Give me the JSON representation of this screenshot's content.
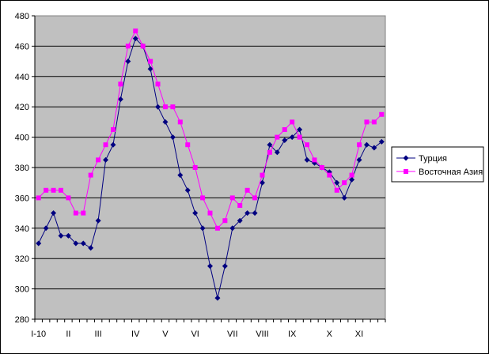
{
  "chart_data": {
    "type": "line",
    "title": "",
    "xlabel": "",
    "ylabel": "",
    "ylim": [
      280,
      480
    ],
    "ytick_step": 20,
    "grid": "horizontal",
    "legend_position": "right",
    "x_tick_labels": [
      {
        "label": "I-10",
        "index": 0
      },
      {
        "label": "II",
        "index": 4
      },
      {
        "label": "III",
        "index": 8
      },
      {
        "label": "IV",
        "index": 13
      },
      {
        "label": "V",
        "index": 17
      },
      {
        "label": "VI",
        "index": 21
      },
      {
        "label": "VII",
        "index": 26
      },
      {
        "label": "VIII",
        "index": 30
      },
      {
        "label": "IX",
        "index": 34
      },
      {
        "label": "X",
        "index": 39
      },
      {
        "label": "XI",
        "index": 43
      }
    ],
    "num_points": 47,
    "series": [
      {
        "name": "Турция",
        "color": "#000080",
        "marker": "diamond",
        "values": [
          330,
          340,
          350,
          335,
          335,
          330,
          330,
          327,
          345,
          385,
          395,
          425,
          450,
          465,
          460,
          445,
          420,
          410,
          400,
          375,
          365,
          350,
          340,
          315,
          294,
          315,
          340,
          345,
          350,
          350,
          370,
          395,
          390,
          398,
          400,
          405,
          385,
          383,
          380,
          377,
          370,
          360,
          372,
          385,
          395,
          393,
          397
        ]
      },
      {
        "name": "Восточная Азия",
        "color": "#FF00FF",
        "marker": "square",
        "values": [
          360,
          365,
          365,
          365,
          360,
          350,
          350,
          375,
          385,
          395,
          405,
          435,
          460,
          470,
          460,
          450,
          435,
          420,
          420,
          410,
          395,
          380,
          360,
          350,
          340,
          345,
          360,
          355,
          365,
          360,
          375,
          390,
          400,
          405,
          410,
          400,
          395,
          385,
          380,
          375,
          365,
          370,
          375,
          395,
          410,
          410,
          415
        ]
      }
    ]
  }
}
